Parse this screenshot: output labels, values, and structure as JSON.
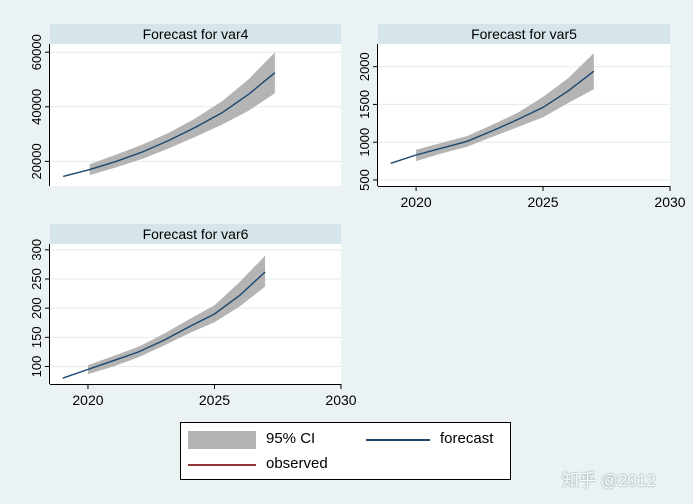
{
  "colors": {
    "background": "#eaf2f3",
    "panel": "#ffffff",
    "title_bar": "#d5e5ea",
    "grid": "#e3ecee",
    "ci_fill": "#b4b4b4",
    "forecast_line": "#1a476f",
    "observed_line": "#90353b"
  },
  "chart_data": [
    {
      "type": "line",
      "title": "Forecast for var4",
      "x": [
        2019,
        2020,
        2021,
        2022,
        2023,
        2024,
        2025,
        2026,
        2027
      ],
      "forecast": [
        14500,
        17000,
        20000,
        23500,
        27700,
        32500,
        37800,
        44500,
        52500
      ],
      "ci_x": [
        2020,
        2021,
        2022,
        2023,
        2024,
        2025,
        2026,
        2027
      ],
      "ci_lower": [
        15000,
        17800,
        21000,
        24800,
        29000,
        33500,
        38500,
        45000
      ],
      "ci_upper": [
        19000,
        22500,
        26200,
        30500,
        35800,
        42000,
        50000,
        60000
      ],
      "yticks": [
        20000,
        40000,
        60000
      ],
      "ytick_labels": [
        "20000",
        "40000",
        "60000"
      ],
      "ylim": [
        11000,
        63000
      ],
      "xlim": [
        2018.5,
        2029.5
      ],
      "xticks": [],
      "xtick_labels": [],
      "grid": true
    },
    {
      "type": "line",
      "title": "Forecast for var5",
      "x": [
        2019,
        2020,
        2021,
        2022,
        2023,
        2024,
        2025,
        2026,
        2027
      ],
      "forecast": [
        720,
        830,
        920,
        1010,
        1150,
        1300,
        1460,
        1680,
        1940
      ],
      "ci_x": [
        2020,
        2021,
        2022,
        2023,
        2024,
        2025,
        2026,
        2027
      ],
      "ci_lower": [
        750,
        850,
        940,
        1070,
        1200,
        1330,
        1520,
        1700
      ],
      "ci_upper": [
        900,
        990,
        1080,
        1230,
        1390,
        1600,
        1850,
        2180
      ],
      "yticks": [
        500,
        1000,
        1500,
        2000
      ],
      "ytick_labels": [
        "500",
        "1000",
        "1500",
        "2000"
      ],
      "ylim": [
        420,
        2300
      ],
      "xlim": [
        2018.5,
        2030
      ],
      "xticks": [
        2020,
        2025,
        2030
      ],
      "xtick_labels": [
        "2020",
        "2025",
        "2030"
      ],
      "grid": true
    },
    {
      "type": "line",
      "title": "Forecast for var6",
      "x": [
        2019,
        2020,
        2021,
        2022,
        2023,
        2024,
        2025,
        2026,
        2027
      ],
      "forecast": [
        80,
        95,
        110,
        125,
        145,
        168,
        190,
        222,
        262
      ],
      "ci_x": [
        2020,
        2021,
        2022,
        2023,
        2024,
        2025,
        2026,
        2027
      ],
      "ci_lower": [
        87,
        100,
        116,
        136,
        157,
        176,
        203,
        237
      ],
      "ci_upper": [
        102,
        118,
        134,
        156,
        181,
        205,
        245,
        290
      ],
      "yticks": [
        100,
        150,
        200,
        250,
        300
      ],
      "ytick_labels": [
        "100",
        "150",
        "200",
        "250",
        "300"
      ],
      "ylim": [
        70,
        310
      ],
      "xlim": [
        2018.5,
        2030
      ],
      "xticks": [
        2020,
        2025,
        2030
      ],
      "xtick_labels": [
        "2020",
        "2025",
        "2030"
      ],
      "grid": true
    }
  ],
  "legend": {
    "items": [
      {
        "label": "95% CI",
        "kind": "area"
      },
      {
        "label": "forecast",
        "kind": "line"
      },
      {
        "label": "observed",
        "kind": "observed"
      }
    ]
  },
  "watermark": "知乎 @2012"
}
